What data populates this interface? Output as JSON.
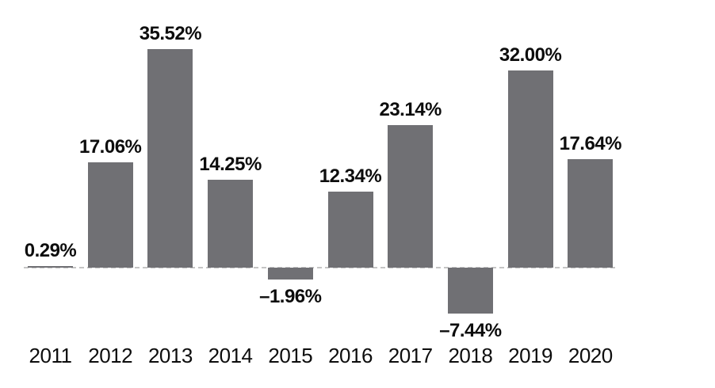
{
  "chart_data": {
    "type": "bar",
    "categories": [
      "2011",
      "2012",
      "2013",
      "2014",
      "2015",
      "2016",
      "2017",
      "2018",
      "2019",
      "2020"
    ],
    "values": [
      0.29,
      17.06,
      35.52,
      14.25,
      -1.96,
      12.34,
      23.14,
      -7.44,
      32.0,
      17.64
    ],
    "labels": [
      "0.29%",
      "17.06%",
      "35.52%",
      "14.25%",
      "–1.96%",
      "12.34%",
      "23.14%",
      "–7.44%",
      "32.00%",
      "17.64%"
    ],
    "title": "",
    "xlabel": "",
    "ylabel": "",
    "ylim": [
      -10,
      38
    ],
    "grid": false,
    "legend": null,
    "bar_color": "#707074",
    "zero_line_color": "#c5c5c5",
    "text_color": "#0d0d0d"
  }
}
